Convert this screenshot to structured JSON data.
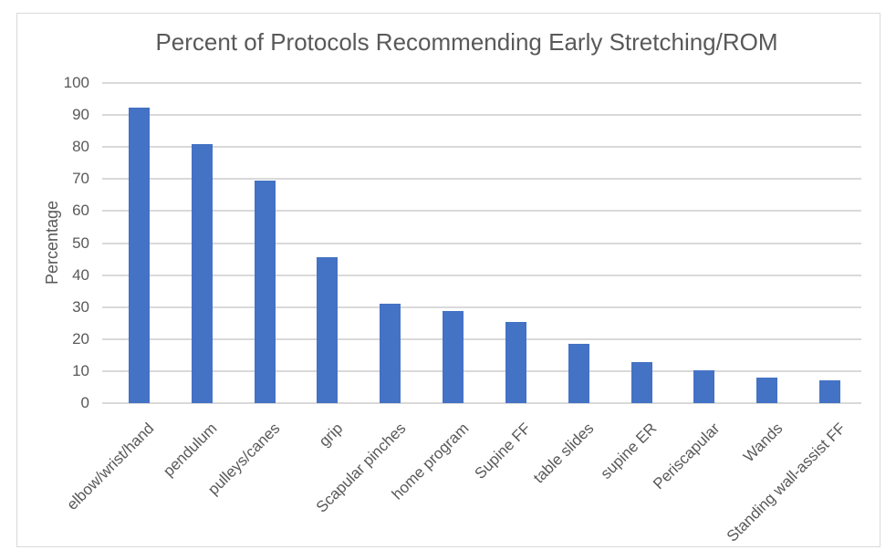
{
  "chart_data": {
    "type": "bar",
    "title": "Percent of Protocols Recommending Early Stretching/ROM",
    "xlabel": "",
    "ylabel": "Percentage",
    "ylim": [
      0,
      100
    ],
    "yticks": [
      0,
      10,
      20,
      30,
      40,
      50,
      60,
      70,
      80,
      90,
      100
    ],
    "categories": [
      "elbow/wrist/hand",
      "pendulum",
      "pulleys/canes",
      "grip",
      "Scapular pinches",
      "home program",
      "Supine FF",
      "table slides",
      "supine ER",
      "Periscapular",
      "Wands",
      "Standing wall-assist FF"
    ],
    "values": [
      92.3,
      81,
      69.5,
      45.5,
      31,
      28.8,
      25.3,
      18.5,
      12.8,
      10.3,
      8,
      7
    ],
    "grid": "horizontal",
    "legend": "none",
    "bar_color": "#4472C4",
    "gridline_color": "#D9D9D9",
    "text_color": "#595959",
    "border_color": "#D9D9D9",
    "background": "#FFFFFF"
  }
}
